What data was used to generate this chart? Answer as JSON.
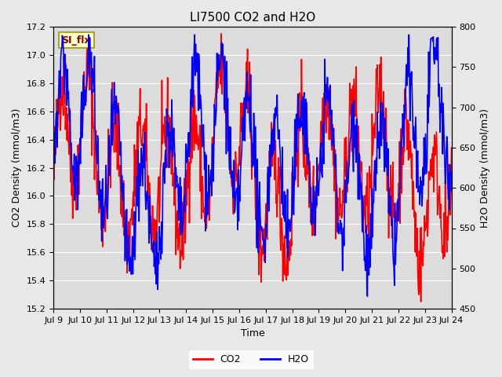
{
  "title": "LI7500 CO2 and H2O",
  "xlabel": "Time",
  "ylabel_left": "CO2 Density (mmol/m3)",
  "ylabel_right": "H2O Density (mmol/m3)",
  "ylim_left": [
    15.2,
    17.2
  ],
  "ylim_right": [
    450,
    800
  ],
  "yticks_left": [
    15.2,
    15.4,
    15.6,
    15.8,
    16.0,
    16.2,
    16.4,
    16.6,
    16.8,
    17.0,
    17.2
  ],
  "yticks_right": [
    450,
    500,
    550,
    600,
    650,
    700,
    750,
    800
  ],
  "xtick_labels": [
    "Jul 9",
    "Jul 10",
    "Jul 11",
    "Jul 12",
    "Jul 13",
    "Jul 14",
    "Jul 15",
    "Jul 16",
    "Jul 17",
    "Jul 18",
    "Jul 19",
    "Jul 20",
    "Jul 21",
    "Jul 22",
    "Jul 23",
    "Jul 24"
  ],
  "n_days": 15,
  "color_co2": "#FF0000",
  "color_h2o": "#0000FF",
  "background_color": "#E8E8E8",
  "plot_bg_color": "#DCDCDC",
  "grid_color": "#FFFFFF",
  "legend_label_co2": "CO2",
  "legend_label_h2o": "H2O",
  "watermark_text": "SI_flx",
  "watermark_bg": "#FFFFCC",
  "watermark_border": "#999900",
  "watermark_text_color": "#8B0000",
  "linewidth": 1.2,
  "title_fontsize": 11,
  "axis_fontsize": 9,
  "tick_fontsize": 8
}
